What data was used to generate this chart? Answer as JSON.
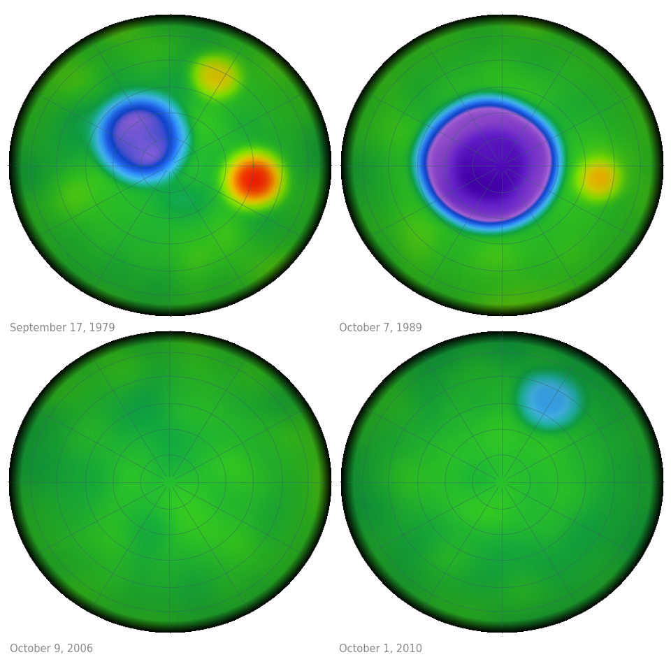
{
  "labels": [
    "September 17, 1979",
    "October 7, 1989",
    "October 9, 2006",
    "October 1, 2010"
  ],
  "label_color": "#888888",
  "label_fontsize": 10.5,
  "background_color": "#ffffff",
  "fig_width": 9.6,
  "fig_height": 9.6,
  "grid_color": "#336666",
  "grid_alpha": 0.55,
  "grid_lw": 0.6
}
